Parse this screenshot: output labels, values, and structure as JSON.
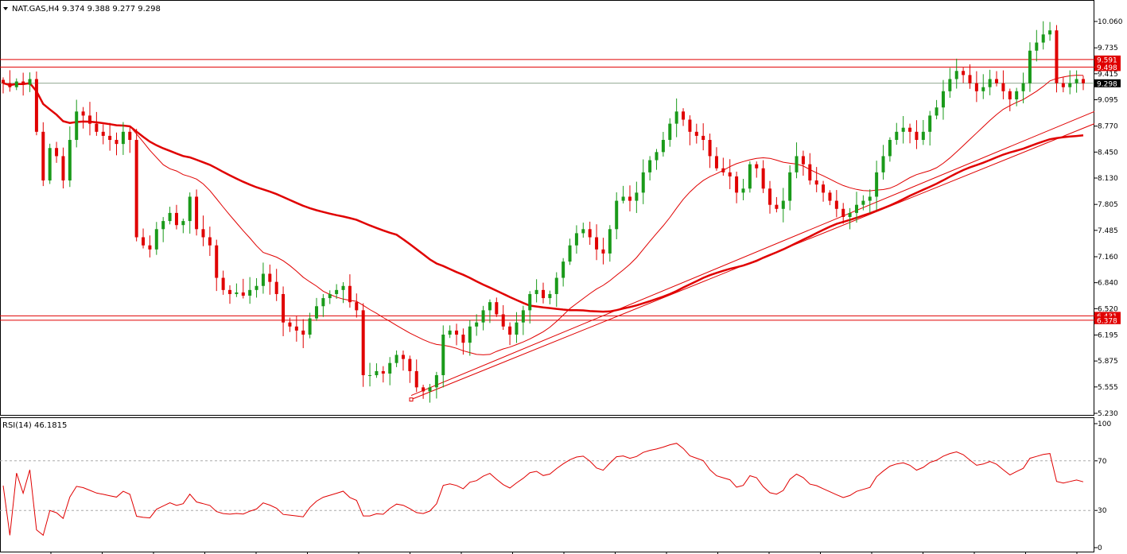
{
  "chart_data": {
    "type": "candlestick",
    "symbol_line": "NAT.GAS,H4  9.374 9.388 9.277 9.298",
    "price_axis": {
      "ylim": [
        5.22,
        10.2
      ],
      "ticks": [
        "10.060",
        "9.735",
        "9.415",
        "9.095",
        "8.770",
        "8.450",
        "8.130",
        "7.805",
        "7.485",
        "7.160",
        "6.840",
        "6.520",
        "6.195",
        "5.875",
        "5.555",
        "5.230"
      ]
    },
    "horizontal_levels": [
      9.591,
      9.498,
      6.431,
      6.378
    ],
    "current_price": 9.298,
    "price_badges": [
      {
        "label": "9.591",
        "color": "#e00000"
      },
      {
        "label": "9.498",
        "color": "#e00000"
      },
      {
        "label": "9.298",
        "color": "#000000"
      },
      {
        "label": "6.431",
        "color": "#e00000"
      },
      {
        "label": "6.378",
        "color": "#e00000"
      }
    ],
    "closes": [
      9.3,
      9.25,
      9.32,
      9.28,
      9.35,
      8.7,
      8.1,
      8.5,
      8.4,
      8.1,
      8.6,
      8.95,
      8.9,
      8.8,
      8.7,
      8.65,
      8.6,
      8.55,
      8.7,
      8.6,
      7.4,
      7.3,
      7.25,
      7.5,
      7.6,
      7.7,
      7.55,
      7.6,
      7.9,
      7.5,
      7.4,
      7.3,
      6.9,
      6.75,
      6.7,
      6.72,
      6.68,
      6.75,
      6.8,
      6.95,
      6.85,
      6.7,
      6.35,
      6.3,
      6.25,
      6.2,
      6.4,
      6.55,
      6.65,
      6.7,
      6.75,
      6.8,
      6.6,
      6.5,
      5.7,
      5.7,
      5.75,
      5.72,
      5.85,
      5.95,
      5.9,
      5.75,
      5.55,
      5.5,
      5.55,
      5.7,
      6.2,
      6.25,
      6.2,
      6.1,
      6.3,
      6.35,
      6.5,
      6.6,
      6.45,
      6.3,
      6.2,
      6.35,
      6.5,
      6.7,
      6.75,
      6.65,
      6.7,
      6.9,
      7.1,
      7.3,
      7.45,
      7.5,
      7.4,
      7.25,
      7.2,
      7.5,
      7.85,
      7.9,
      7.85,
      7.95,
      8.2,
      8.35,
      8.45,
      8.6,
      8.8,
      8.95,
      8.85,
      8.7,
      8.65,
      8.6,
      8.4,
      8.25,
      8.2,
      8.15,
      7.95,
      8.0,
      8.3,
      8.25,
      8.0,
      7.8,
      7.75,
      7.85,
      8.2,
      8.4,
      8.3,
      8.1,
      8.05,
      7.95,
      7.85,
      7.75,
      7.65,
      7.7,
      7.8,
      7.85,
      7.9,
      8.2,
      8.4,
      8.6,
      8.7,
      8.75,
      8.7,
      8.6,
      8.7,
      8.9,
      9.0,
      9.2,
      9.35,
      9.45,
      9.4,
      9.3,
      9.2,
      9.25,
      9.35,
      9.3,
      9.2,
      9.1,
      9.2,
      9.3,
      9.7,
      9.8,
      9.9,
      9.95,
      9.3,
      9.25,
      9.3,
      9.35,
      9.3
    ],
    "series": [
      {
        "name": "",
        "color": "#e00000"
      },
      {
        "name": "",
        "color": "#e00000"
      }
    ],
    "trendlines": [
      {
        "from": [
          517,
          5.45
        ],
        "to": [
          1376,
          8.95
        ]
      },
      {
        "from": [
          517,
          5.4
        ],
        "to": [
          1376,
          8.8
        ]
      }
    ],
    "rsi": {
      "label": "RSI(14) 46.1815",
      "ticks": [
        "100",
        "70",
        "30",
        "0"
      ],
      "levels": [
        70,
        30
      ],
      "ylim": [
        0,
        100
      ]
    }
  }
}
